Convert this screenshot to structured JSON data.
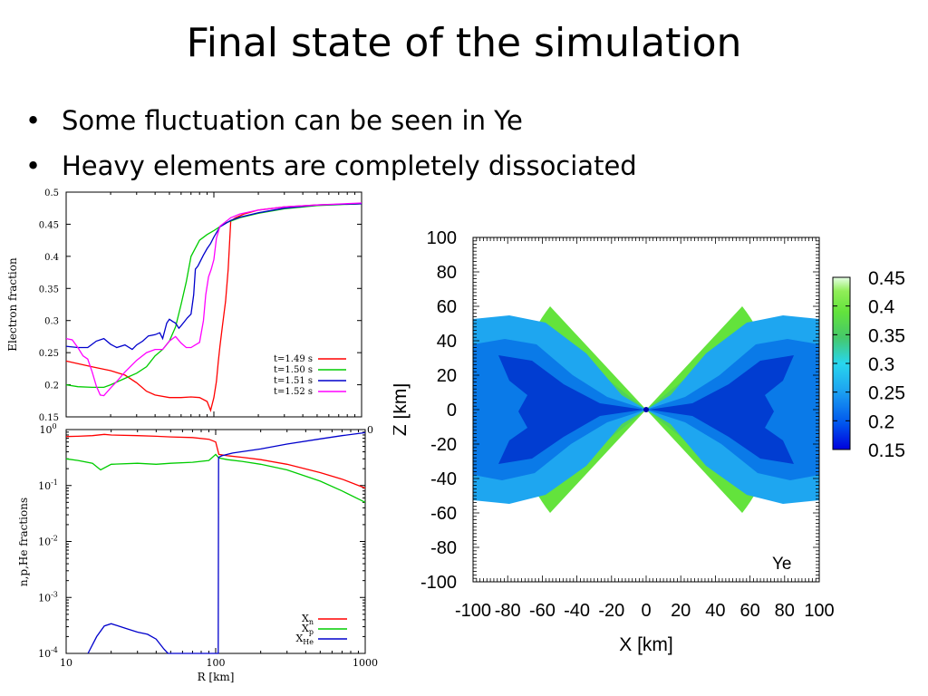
{
  "slide": {
    "title": "Final state of the simulation",
    "bullets": [
      "Some fluctuation can be seen in Ye",
      "Heavy elements are completely dissociated"
    ]
  },
  "chart_data": [
    {
      "type": "line",
      "ylabel": "Electron fraction",
      "ylim": [
        0.15,
        0.5
      ],
      "yticks": [
        "0.15",
        "0.2",
        "0.25",
        "0.3",
        "0.35",
        "0.4",
        "0.45",
        "0.5"
      ],
      "x_scale": "log",
      "xlim": [
        10,
        1000
      ],
      "stray_tick_label": "0",
      "legend_placement": "bottom-right",
      "series": [
        {
          "name": "t=1.49 s",
          "color": "#ff0000",
          "points": [
            [
              10,
              0.237
            ],
            [
              12,
              0.233
            ],
            [
              15,
              0.228
            ],
            [
              20,
              0.222
            ],
            [
              25,
              0.215
            ],
            [
              30,
              0.203
            ],
            [
              35,
              0.19
            ],
            [
              40,
              0.184
            ],
            [
              50,
              0.18
            ],
            [
              60,
              0.18
            ],
            [
              70,
              0.181
            ],
            [
              80,
              0.18
            ],
            [
              90,
              0.174
            ],
            [
              95,
              0.16
            ],
            [
              100,
              0.18
            ],
            [
              104,
              0.205
            ],
            [
              107,
              0.235
            ],
            [
              110,
              0.26
            ],
            [
              114,
              0.29
            ],
            [
              117,
              0.31
            ],
            [
              120,
              0.33
            ],
            [
              125,
              0.38
            ],
            [
              130,
              0.455
            ],
            [
              140,
              0.46
            ],
            [
              160,
              0.466
            ],
            [
              200,
              0.472
            ],
            [
              300,
              0.477
            ],
            [
              500,
              0.48
            ],
            [
              1000,
              0.482
            ]
          ]
        },
        {
          "name": "t=1.50 s",
          "color": "#00cc00",
          "points": [
            [
              10,
              0.2
            ],
            [
              12,
              0.197
            ],
            [
              15,
              0.196
            ],
            [
              18,
              0.196
            ],
            [
              20,
              0.2
            ],
            [
              25,
              0.21
            ],
            [
              30,
              0.218
            ],
            [
              35,
              0.228
            ],
            [
              40,
              0.245
            ],
            [
              45,
              0.255
            ],
            [
              50,
              0.268
            ],
            [
              55,
              0.29
            ],
            [
              60,
              0.325
            ],
            [
              65,
              0.36
            ],
            [
              70,
              0.4
            ],
            [
              80,
              0.425
            ],
            [
              90,
              0.434
            ],
            [
              100,
              0.44
            ],
            [
              120,
              0.452
            ],
            [
              150,
              0.46
            ],
            [
              200,
              0.467
            ],
            [
              300,
              0.474
            ],
            [
              500,
              0.479
            ],
            [
              1000,
              0.482
            ]
          ]
        },
        {
          "name": "t=1.51 s",
          "color": "#0000cc",
          "points": [
            [
              10,
              0.26
            ],
            [
              12,
              0.258
            ],
            [
              14,
              0.258
            ],
            [
              16,
              0.268
            ],
            [
              18,
              0.272
            ],
            [
              20,
              0.263
            ],
            [
              22,
              0.258
            ],
            [
              25,
              0.262
            ],
            [
              28,
              0.255
            ],
            [
              30,
              0.262
            ],
            [
              33,
              0.268
            ],
            [
              36,
              0.276
            ],
            [
              40,
              0.278
            ],
            [
              43,
              0.281
            ],
            [
              45,
              0.272
            ],
            [
              48,
              0.296
            ],
            [
              50,
              0.302
            ],
            [
              53,
              0.298
            ],
            [
              55,
              0.296
            ],
            [
              58,
              0.288
            ],
            [
              60,
              0.292
            ],
            [
              63,
              0.298
            ],
            [
              66,
              0.304
            ],
            [
              70,
              0.31
            ],
            [
              73,
              0.34
            ],
            [
              75,
              0.38
            ],
            [
              78,
              0.385
            ],
            [
              80,
              0.39
            ],
            [
              85,
              0.402
            ],
            [
              90,
              0.412
            ],
            [
              95,
              0.42
            ],
            [
              100,
              0.43
            ],
            [
              110,
              0.446
            ],
            [
              130,
              0.456
            ],
            [
              150,
              0.461
            ],
            [
              200,
              0.468
            ],
            [
              300,
              0.475
            ],
            [
              500,
              0.48
            ],
            [
              1000,
              0.482
            ]
          ]
        },
        {
          "name": "t=1.52 s",
          "color": "#ff00ff",
          "points": [
            [
              10,
              0.272
            ],
            [
              11,
              0.27
            ],
            [
              12,
              0.258
            ],
            [
              13,
              0.245
            ],
            [
              14,
              0.24
            ],
            [
              15,
              0.22
            ],
            [
              16,
              0.198
            ],
            [
              17,
              0.184
            ],
            [
              18,
              0.183
            ],
            [
              20,
              0.195
            ],
            [
              22,
              0.205
            ],
            [
              25,
              0.22
            ],
            [
              30,
              0.238
            ],
            [
              35,
              0.25
            ],
            [
              40,
              0.255
            ],
            [
              45,
              0.255
            ],
            [
              50,
              0.268
            ],
            [
              55,
              0.275
            ],
            [
              60,
              0.265
            ],
            [
              65,
              0.258
            ],
            [
              70,
              0.258
            ],
            [
              75,
              0.262
            ],
            [
              80,
              0.266
            ],
            [
              85,
              0.3
            ],
            [
              88,
              0.34
            ],
            [
              92,
              0.368
            ],
            [
              96,
              0.38
            ],
            [
              100,
              0.395
            ],
            [
              104,
              0.428
            ],
            [
              110,
              0.447
            ],
            [
              130,
              0.46
            ],
            [
              150,
              0.466
            ],
            [
              200,
              0.472
            ],
            [
              300,
              0.477
            ],
            [
              500,
              0.48
            ],
            [
              1000,
              0.483
            ]
          ]
        }
      ]
    },
    {
      "type": "line",
      "ylabel": "n,p,He fractions",
      "xlabel": "R [km]",
      "x_scale": "log",
      "y_scale": "log",
      "xlim": [
        10,
        1000
      ],
      "ylim": [
        0.0001,
        1
      ],
      "xticks": [
        "10",
        "100",
        "1000"
      ],
      "yticks": [
        "10^0",
        "10^-1",
        "10^-2",
        "10^-3",
        "10^-4"
      ],
      "legend_placement": "bottom-right",
      "series": [
        {
          "name_base": "X",
          "name_sub": "n",
          "color": "#ff0000",
          "points": [
            [
              10,
              0.75
            ],
            [
              12,
              0.76
            ],
            [
              15,
              0.78
            ],
            [
              18,
              0.82
            ],
            [
              20,
              0.8
            ],
            [
              30,
              0.78
            ],
            [
              40,
              0.76
            ],
            [
              50,
              0.74
            ],
            [
              70,
              0.72
            ],
            [
              90,
              0.67
            ],
            [
              100,
              0.6
            ],
            [
              105,
              0.36
            ],
            [
              120,
              0.34
            ],
            [
              150,
              0.32
            ],
            [
              200,
              0.29
            ],
            [
              300,
              0.24
            ],
            [
              500,
              0.17
            ],
            [
              700,
              0.13
            ],
            [
              1000,
              0.09
            ]
          ]
        },
        {
          "name_base": "X",
          "name_sub": "p",
          "color": "#00cc00",
          "points": [
            [
              10,
              0.3
            ],
            [
              12,
              0.28
            ],
            [
              15,
              0.25
            ],
            [
              17,
              0.19
            ],
            [
              20,
              0.24
            ],
            [
              30,
              0.25
            ],
            [
              40,
              0.24
            ],
            [
              50,
              0.25
            ],
            [
              70,
              0.26
            ],
            [
              90,
              0.28
            ],
            [
              100,
              0.36
            ],
            [
              105,
              0.31
            ],
            [
              120,
              0.29
            ],
            [
              150,
              0.27
            ],
            [
              200,
              0.24
            ],
            [
              300,
              0.19
            ],
            [
              500,
              0.12
            ],
            [
              700,
              0.08
            ],
            [
              1000,
              0.05
            ]
          ]
        },
        {
          "name_base": "X",
          "name_sub": "He",
          "color": "#0000cc",
          "points": [
            [
              14,
              0.0001
            ],
            [
              16,
              0.0002
            ],
            [
              18,
              0.00031
            ],
            [
              20,
              0.00034
            ],
            [
              25,
              0.00028
            ],
            [
              30,
              0.00024
            ],
            [
              35,
              0.00022
            ],
            [
              40,
              0.00018
            ],
            [
              45,
              0.00012
            ],
            [
              48,
              0.0001
            ],
            [
              60,
              0.0001
            ],
            [
              80,
              0.0001
            ],
            [
              104,
              0.0001
            ],
            [
              104.5,
              0.32
            ],
            [
              110,
              0.34
            ],
            [
              130,
              0.38
            ],
            [
              200,
              0.45
            ],
            [
              300,
              0.55
            ],
            [
              500,
              0.68
            ],
            [
              700,
              0.78
            ],
            [
              1000,
              0.88
            ]
          ]
        }
      ]
    },
    {
      "type": "heatmap",
      "annotation": "Ye",
      "xlabel": "X [km]",
      "ylabel": "Z [km]",
      "xlim": [
        -100,
        100
      ],
      "ylim": [
        -100,
        100
      ],
      "xticks": [
        "-100",
        "-80",
        "-60",
        "-40",
        "-20",
        "0",
        "20",
        "40",
        "60",
        "80",
        "100"
      ],
      "yticks": [
        "100",
        "80",
        "60",
        "40",
        "20",
        "0",
        "-20",
        "-40",
        "-60",
        "-80",
        "-100"
      ],
      "colorbar": {
        "ticks": [
          "0.45",
          "0.4",
          "0.35",
          "0.3",
          "0.25",
          "0.2",
          "0.15"
        ],
        "range": [
          0.15,
          0.45
        ],
        "colors": [
          "#0000dd",
          "#0055ee",
          "#1ea6f0",
          "#28d6ee",
          "#45c86a",
          "#63e33c",
          "#90ee58",
          "#e6ffe6"
        ]
      }
    }
  ]
}
